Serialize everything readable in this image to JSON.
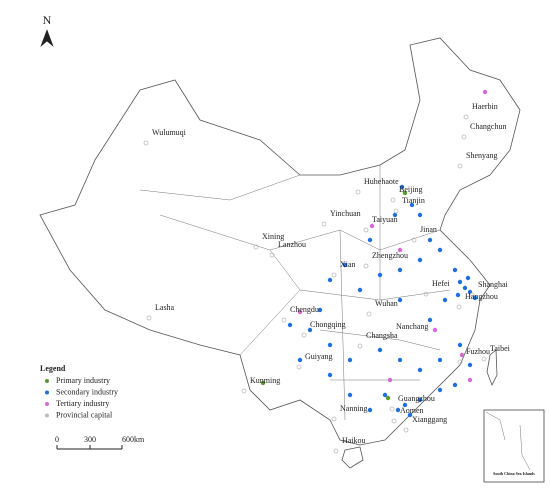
{
  "north": "N",
  "cities": [
    "Haerbin",
    "Changchun",
    "Shenyang",
    "Wulumuqi",
    "Huhehaote",
    "Beijing",
    "Tianjin",
    "Yinchuan",
    "Taiyuan",
    "Xining",
    "Lanzhou",
    "Jinan",
    "Zhengzhou",
    "Xian",
    "Hefei",
    "Shanghai",
    "Hangzhou",
    "Wuhan",
    "Lasha",
    "Chengdu",
    "Chongqing",
    "Nanchang",
    "Changsha",
    "Fuzhou",
    "Taibei",
    "Guiyang",
    "Kunming",
    "Guangzhou",
    "Nanning",
    "Aomen",
    "Xianggang",
    "Haikou"
  ],
  "legend": {
    "title": "Legend",
    "items": [
      {
        "label": "Primary industry",
        "color": "#5a9a2a"
      },
      {
        "label": "Secondary industry",
        "color": "#1f6fe0"
      },
      {
        "label": "Tertiary industry",
        "color": "#d868d8"
      },
      {
        "label": "Provincial capital",
        "color": "#bbbbbb"
      }
    ]
  },
  "scale": {
    "labels": [
      "0",
      "300",
      "600km"
    ]
  },
  "inset": "South China Sea Islands"
}
